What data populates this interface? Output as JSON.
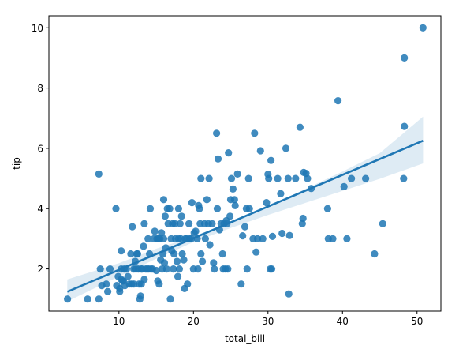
{
  "chart_data": {
    "type": "scatter",
    "xlabel": "total_bill",
    "ylabel": "tip",
    "xlim": [
      0.6,
      53.2
    ],
    "ylim": [
      0.6,
      10.4
    ],
    "xticks": [
      10,
      20,
      30,
      40,
      50
    ],
    "yticks": [
      2,
      4,
      6,
      8,
      10
    ],
    "grid": false,
    "colors": {
      "points": "#1f77b4",
      "line": "#1f77b4",
      "band": "#1f77b4"
    },
    "series": [
      {
        "points": [
          [
            3.1,
            1.0
          ],
          [
            5.8,
            1.0
          ],
          [
            7.3,
            1.0
          ],
          [
            7.3,
            5.15
          ],
          [
            7.5,
            2.0
          ],
          [
            7.7,
            1.45
          ],
          [
            8.3,
            1.5
          ],
          [
            8.5,
            1.25
          ],
          [
            8.8,
            2.0
          ],
          [
            9.6,
            4.0
          ],
          [
            9.7,
            1.45
          ],
          [
            9.9,
            1.75
          ],
          [
            10.1,
            1.35
          ],
          [
            10.1,
            1.25
          ],
          [
            10.3,
            1.65
          ],
          [
            10.3,
            2.0
          ],
          [
            10.5,
            1.6
          ],
          [
            10.6,
            1.6
          ],
          [
            10.7,
            2.0
          ],
          [
            10.8,
            1.45
          ],
          [
            10.3,
            2.6
          ],
          [
            11.0,
            2.0
          ],
          [
            11.2,
            1.75
          ],
          [
            11.4,
            1.5
          ],
          [
            11.6,
            2.5
          ],
          [
            11.7,
            1.5
          ],
          [
            11.8,
            3.4
          ],
          [
            12.0,
            2.0
          ],
          [
            12.0,
            1.5
          ],
          [
            12.2,
            2.25
          ],
          [
            12.3,
            2.0
          ],
          [
            12.4,
            2.5
          ],
          [
            12.5,
            2.5
          ],
          [
            12.6,
            2.0
          ],
          [
            12.7,
            1.5
          ],
          [
            12.8,
            1.0
          ],
          [
            12.9,
            1.1
          ],
          [
            13.0,
            2.0
          ],
          [
            13.0,
            1.5
          ],
          [
            13.1,
            2.0
          ],
          [
            13.3,
            2.75
          ],
          [
            13.4,
            3.5
          ],
          [
            13.4,
            1.65
          ],
          [
            13.6,
            2.0
          ],
          [
            13.8,
            2.0
          ],
          [
            13.9,
            3.0
          ],
          [
            14.0,
            2.0
          ],
          [
            14.1,
            2.5
          ],
          [
            14.2,
            4.0
          ],
          [
            14.3,
            2.0
          ],
          [
            14.5,
            2.0
          ],
          [
            14.7,
            3.0
          ],
          [
            14.8,
            3.25
          ],
          [
            15.0,
            1.95
          ],
          [
            15.1,
            3.0
          ],
          [
            15.2,
            1.6
          ],
          [
            15.3,
            3.0
          ],
          [
            15.4,
            1.5
          ],
          [
            15.5,
            3.0
          ],
          [
            15.6,
            2.3
          ],
          [
            15.7,
            3.2
          ],
          [
            15.8,
            2.0
          ],
          [
            15.9,
            2.5
          ],
          [
            16.0,
            3.0
          ],
          [
            16.0,
            4.3
          ],
          [
            16.1,
            2.2
          ],
          [
            16.2,
            3.75
          ],
          [
            16.3,
            2.7
          ],
          [
            16.4,
            2.0
          ],
          [
            16.5,
            4.0
          ],
          [
            16.6,
            3.5
          ],
          [
            16.8,
            4.0
          ],
          [
            16.9,
            1.0
          ],
          [
            17.0,
            3.0
          ],
          [
            17.1,
            2.6
          ],
          [
            17.2,
            3.5
          ],
          [
            17.3,
            2.0
          ],
          [
            17.4,
            2.5
          ],
          [
            17.5,
            3.5
          ],
          [
            17.6,
            3.0
          ],
          [
            17.8,
            2.25
          ],
          [
            17.9,
            1.75
          ],
          [
            18.0,
            3.0
          ],
          [
            18.0,
            4.0
          ],
          [
            18.1,
            2.0
          ],
          [
            18.2,
            3.5
          ],
          [
            18.3,
            3.0
          ],
          [
            18.4,
            3.75
          ],
          [
            18.5,
            2.5
          ],
          [
            18.7,
            2.3
          ],
          [
            18.8,
            1.35
          ],
          [
            18.9,
            3.0
          ],
          [
            19.1,
            3.0
          ],
          [
            19.2,
            1.5
          ],
          [
            19.4,
            3.5
          ],
          [
            19.5,
            3.0
          ],
          [
            19.7,
            3.0
          ],
          [
            19.8,
            4.2
          ],
          [
            20.0,
            2.0
          ],
          [
            20.1,
            3.2
          ],
          [
            20.3,
            3.25
          ],
          [
            20.5,
            3.0
          ],
          [
            20.6,
            2.0
          ],
          [
            20.7,
            4.1
          ],
          [
            20.8,
            4.0
          ],
          [
            20.9,
            3.5
          ],
          [
            21.0,
            5.0
          ],
          [
            21.0,
            2.5
          ],
          [
            21.2,
            2.25
          ],
          [
            21.5,
            3.5
          ],
          [
            21.6,
            3.0
          ],
          [
            21.8,
            4.3
          ],
          [
            22.0,
            3.5
          ],
          [
            22.1,
            5.0
          ],
          [
            22.2,
            2.8
          ],
          [
            22.5,
            3.5
          ],
          [
            22.7,
            2.2
          ],
          [
            22.8,
            2.0
          ],
          [
            23.1,
            6.5
          ],
          [
            23.2,
            4.0
          ],
          [
            23.3,
            5.65
          ],
          [
            23.5,
            3.3
          ],
          [
            23.7,
            3.5
          ],
          [
            23.9,
            2.5
          ],
          [
            24.0,
            2.0
          ],
          [
            24.1,
            3.5
          ],
          [
            24.3,
            2.0
          ],
          [
            24.4,
            3.6
          ],
          [
            24.5,
            3.5
          ],
          [
            24.6,
            2.0
          ],
          [
            24.7,
            5.85
          ],
          [
            24.9,
            3.75
          ],
          [
            25.0,
            4.3
          ],
          [
            25.1,
            5.0
          ],
          [
            25.3,
            4.65
          ],
          [
            25.5,
            4.3
          ],
          [
            25.6,
            4.1
          ],
          [
            25.9,
            5.15
          ],
          [
            26.4,
            1.5
          ],
          [
            26.6,
            3.1
          ],
          [
            26.9,
            3.4
          ],
          [
            27.1,
            4.0
          ],
          [
            27.2,
            2.0
          ],
          [
            27.4,
            5.0
          ],
          [
            27.5,
            4.0
          ],
          [
            28.0,
            3.0
          ],
          [
            28.2,
            6.5
          ],
          [
            28.4,
            2.56
          ],
          [
            28.6,
            3.0
          ],
          [
            29.0,
            5.92
          ],
          [
            29.3,
            3.0
          ],
          [
            29.8,
            4.2
          ],
          [
            30.0,
            5.14
          ],
          [
            30.1,
            5.0
          ],
          [
            30.3,
            2.0
          ],
          [
            30.4,
            5.6
          ],
          [
            30.5,
            2.0
          ],
          [
            30.6,
            3.08
          ],
          [
            31.3,
            5.0
          ],
          [
            31.7,
            4.5
          ],
          [
            31.9,
            3.18
          ],
          [
            32.4,
            6.0
          ],
          [
            32.7,
            5.0
          ],
          [
            32.8,
            1.17
          ],
          [
            32.9,
            3.11
          ],
          [
            33.7,
            5.0
          ],
          [
            34.3,
            6.7
          ],
          [
            34.6,
            3.5
          ],
          [
            34.7,
            3.68
          ],
          [
            34.8,
            5.2
          ],
          [
            35.1,
            5.17
          ],
          [
            35.3,
            5.0
          ],
          [
            35.8,
            4.67
          ],
          [
            38.0,
            4.0
          ],
          [
            38.1,
            3.0
          ],
          [
            38.7,
            3.0
          ],
          [
            39.4,
            7.58
          ],
          [
            40.2,
            4.73
          ],
          [
            40.6,
            3.0
          ],
          [
            41.2,
            5.0
          ],
          [
            43.1,
            5.0
          ],
          [
            44.3,
            2.5
          ],
          [
            45.4,
            3.5
          ],
          [
            48.2,
            5.0
          ],
          [
            48.3,
            6.73
          ],
          [
            48.3,
            9.0
          ],
          [
            50.8,
            10.0
          ]
        ]
      }
    ],
    "regression": {
      "slope": 0.105,
      "intercept": 0.92,
      "x_range": [
        3.07,
        50.81
      ],
      "band": [
        [
          3.07,
          1.65,
          0.92
        ],
        [
          10,
          2.19,
          1.75
        ],
        [
          15,
          2.67,
          2.34
        ],
        [
          20,
          3.08,
          2.89
        ],
        [
          25,
          3.56,
          3.36
        ],
        [
          30,
          4.08,
          3.79
        ],
        [
          35,
          4.65,
          4.19
        ],
        [
          40,
          5.23,
          4.59
        ],
        [
          45,
          5.84,
          4.99
        ],
        [
          50.81,
          7.05,
          5.5
        ]
      ]
    }
  }
}
